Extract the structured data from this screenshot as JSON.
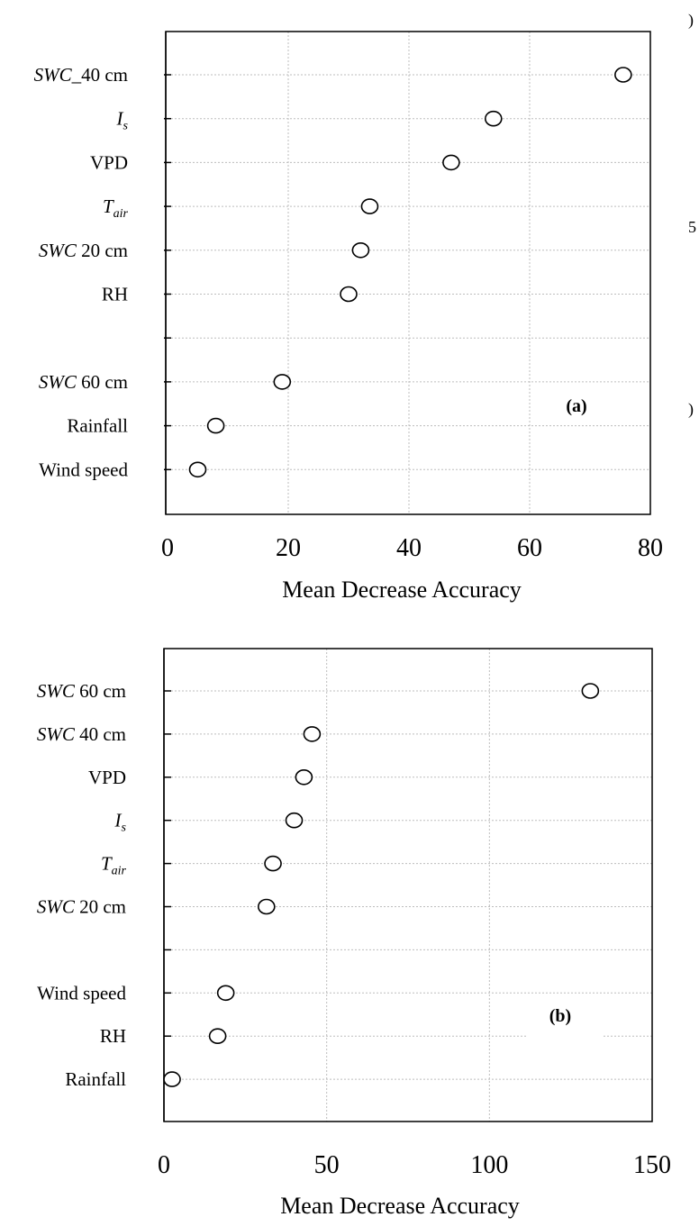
{
  "chart_data": [
    {
      "type": "scatter",
      "panel_label": "(a)",
      "xlabel": "Mean Decrease Accuracy",
      "xlim": [
        0,
        80
      ],
      "xticks": [
        0,
        20,
        40,
        60,
        80
      ],
      "grid": true,
      "categories": [
        {
          "parts": [
            {
              "t": "SWC",
              "i": true
            },
            {
              "t": "_40 cm"
            }
          ],
          "value": 75.5
        },
        {
          "parts": [
            {
              "t": "I",
              "i": true
            },
            {
              "t": "s",
              "i": true,
              "sub": true
            }
          ],
          "value": 54
        },
        {
          "parts": [
            {
              "t": "VPD"
            }
          ],
          "value": 47
        },
        {
          "parts": [
            {
              "t": "T",
              "i": true
            },
            {
              "t": "air",
              "i": true,
              "sub": true
            }
          ],
          "value": 33.5
        },
        {
          "parts": [
            {
              "t": "SWC",
              "i": true
            },
            {
              "t": " 20 cm"
            }
          ],
          "value": 32
        },
        {
          "parts": [
            {
              "t": "RH"
            }
          ],
          "value": 30
        },
        {
          "parts": [],
          "value": null
        },
        {
          "parts": [
            {
              "t": "SWC",
              "i": true
            },
            {
              "t": " 60 cm"
            }
          ],
          "value": 19
        },
        {
          "parts": [
            {
              "t": "Rainfall"
            }
          ],
          "value": 8
        },
        {
          "parts": [
            {
              "t": "Wind speed"
            }
          ],
          "value": 5
        }
      ]
    },
    {
      "type": "scatter",
      "panel_label": "(b)",
      "xlabel": "Mean Decrease Accuracy",
      "xlim": [
        0,
        150
      ],
      "xticks": [
        0,
        50,
        100,
        150
      ],
      "grid": true,
      "categories": [
        {
          "parts": [
            {
              "t": "SWC",
              "i": true
            },
            {
              "t": " 60 cm"
            }
          ],
          "value": 131
        },
        {
          "parts": [
            {
              "t": "SWC",
              "i": true
            },
            {
              "t": " 40 cm"
            }
          ],
          "value": 45.5
        },
        {
          "parts": [
            {
              "t": "VPD"
            }
          ],
          "value": 43
        },
        {
          "parts": [
            {
              "t": "I",
              "i": true
            },
            {
              "t": "s",
              "i": true,
              "sub": true
            }
          ],
          "value": 40
        },
        {
          "parts": [
            {
              "t": "T",
              "i": true
            },
            {
              "t": "air",
              "i": true,
              "sub": true
            }
          ],
          "value": 33.5
        },
        {
          "parts": [
            {
              "t": "SWC",
              "i": true
            },
            {
              "t": " 20 cm"
            }
          ],
          "value": 31.5
        },
        {
          "parts": [],
          "value": null
        },
        {
          "parts": [
            {
              "t": "Wind speed"
            }
          ],
          "value": 19
        },
        {
          "parts": [
            {
              "t": "RH"
            }
          ],
          "value": 16.5
        },
        {
          "parts": [
            {
              "t": "Rainfall"
            }
          ],
          "value": 2.5
        }
      ]
    }
  ],
  "edge_fragments": [
    ")",
    "5",
    ")"
  ]
}
